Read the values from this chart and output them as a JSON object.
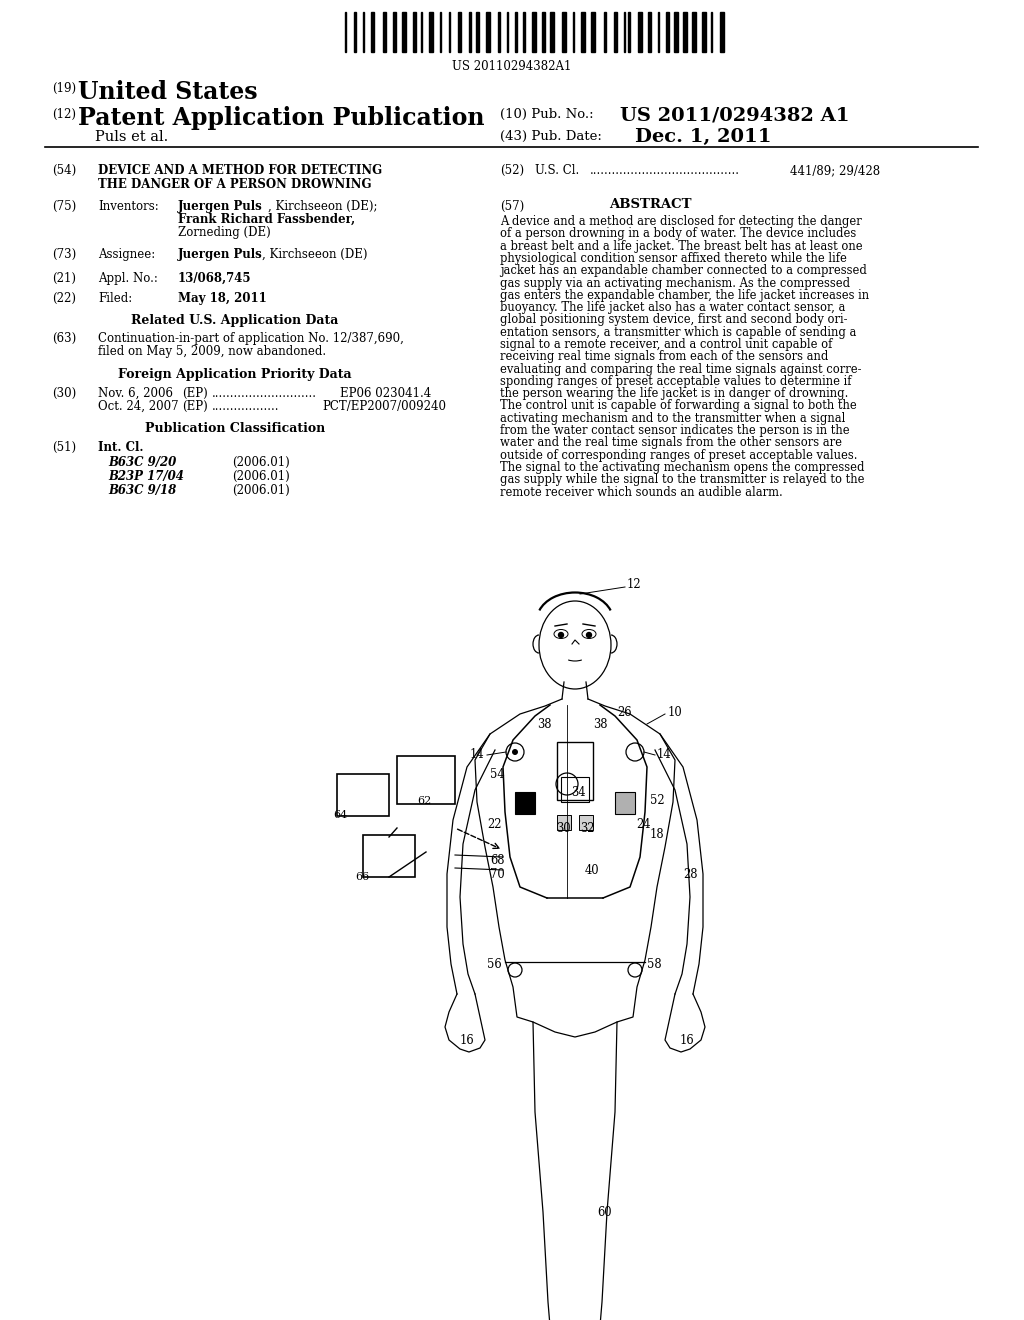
{
  "background_color": "#ffffff",
  "barcode_text": "US 20110294382A1",
  "header": {
    "country_label": "(19)",
    "country_text": "United States",
    "type_label": "(12)",
    "type_text": "Patent Application Publication",
    "pub_no_label": "(10) Pub. No.:",
    "pub_no_value": "US 2011/0294382 A1",
    "authors": "Puls et al.",
    "pub_date_label": "(43) Pub. Date:",
    "pub_date_value": "Dec. 1, 2011"
  },
  "title_num": "(54)",
  "title_line1": "DEVICE AND A METHOD FOR DETECTING",
  "title_line2": "THE DANGER OF A PERSON DROWNING",
  "us_cl_num": "(52)",
  "us_cl_text": "U.S. Cl.",
  "us_cl_value": "441/89; 29/428",
  "inventors_num": "(75)",
  "inventors_label": "Inventors:",
  "inventor1_bold": "Juergen Puls",
  "inventor1_rest": ", Kirchseeon (DE);",
  "inventor2_bold": "Frank Richard Fassbender,",
  "inventor3": "Zorneding (DE)",
  "abstract_num": "(57)",
  "abstract_header": "ABSTRACT",
  "abstract_text": "A device and a method are disclosed for detecting the danger of a person drowning in a body of water. The device includes a breast belt and a life jacket. The breast belt has at least one physiological condition sensor affixed thereto while the life jacket has an expandable chamber connected to a compressed gas supply via an activating mechanism. As the compressed gas enters the expandable chamber, the life jacket increases in buoyancy. The life jacket also has a water contact sensor, a global positioning system device, first and second body ori-entation sensors, a transmitter which is capable of sending a signal to a remote receiver, and a control unit capable of receiving real time signals from each of the sensors and evaluating and comparing the real time signals against corre-sponding ranges of preset acceptable values to determine if the person wearing the life jacket is in danger of drowning. The control unit is capable of forwarding a signal to both the activating mechanism and to the transmitter when a signal from the water contact sensor indicates the person is in the water and the real time signals from the other sensors are outside of corresponding ranges of preset acceptable values. The signal to the activating mechanism opens the compressed gas supply while the signal to the transmitter is relayed to the remote receiver which sounds an audible alarm.",
  "assignee_num": "(73)",
  "assignee_label": "Assignee:",
  "assignee_bold": "Juergen Puls",
  "assignee_rest": ", Kirchseeon (DE)",
  "appl_num": "(21)",
  "appl_label": "Appl. No.:",
  "appl_value": "13/068,745",
  "filed_num": "(22)",
  "filed_label": "Filed:",
  "filed_value": "May 18, 2011",
  "related_header": "Related U.S. Application Data",
  "cont_num": "(63)",
  "cont_line1": "Continuation-in-part of application No. 12/387,690,",
  "cont_line2": "filed on May 5, 2009, now abandoned.",
  "foreign_header": "Foreign Application Priority Data",
  "foreign_num": "(30)",
  "foreign1_date": "Nov. 6, 2006",
  "foreign1_ep": "(EP)",
  "foreign1_dots": "............................",
  "foreign1_num": "EP06 023041.4",
  "foreign2_date": "Oct. 24, 2007",
  "foreign2_ep": "(EP)",
  "foreign2_dots": "..................",
  "foreign2_num": "PCT/EP2007/009240",
  "pub_class_header": "Publication Classification",
  "int_cl_num": "(51)",
  "int_cl_label": "Int. Cl.",
  "cls": [
    [
      "B63C 9/20",
      "(2006.01)"
    ],
    [
      "B23P 17/04",
      "(2006.01)"
    ],
    [
      "B63C 9/18",
      "(2006.01)"
    ]
  ]
}
